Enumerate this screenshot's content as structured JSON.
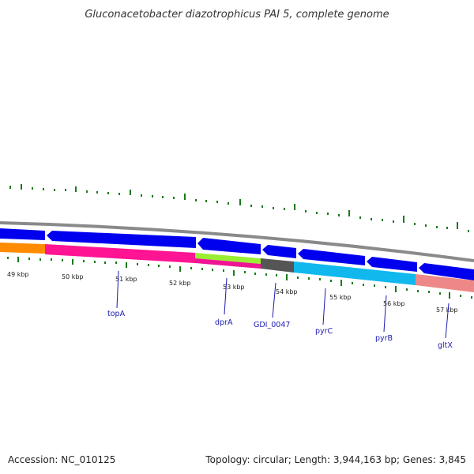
{
  "title": "Gluconacetobacter diazotrophicus PAI 5, complete genome",
  "accession": "Accession: NC_010125",
  "topology": "Topology: circular; Length: 3,944,163 bp; Genes: 3,845",
  "colors": {
    "backbone": "#8a8a8a",
    "cds_forward": "#0000ee",
    "tick": "#1a7a1a",
    "label": "#1a1ab0"
  },
  "scale_labels": [
    "49 kbp",
    "50 kbp",
    "51 kbp",
    "52 kbp",
    "53 kbp",
    "54 kbp",
    "55 kbp",
    "56 kbp",
    "57 kbp"
  ],
  "gene_labels": [
    "topA",
    "dprA",
    "GDI_0047",
    "pyrC",
    "pyrB",
    "gltX"
  ]
}
